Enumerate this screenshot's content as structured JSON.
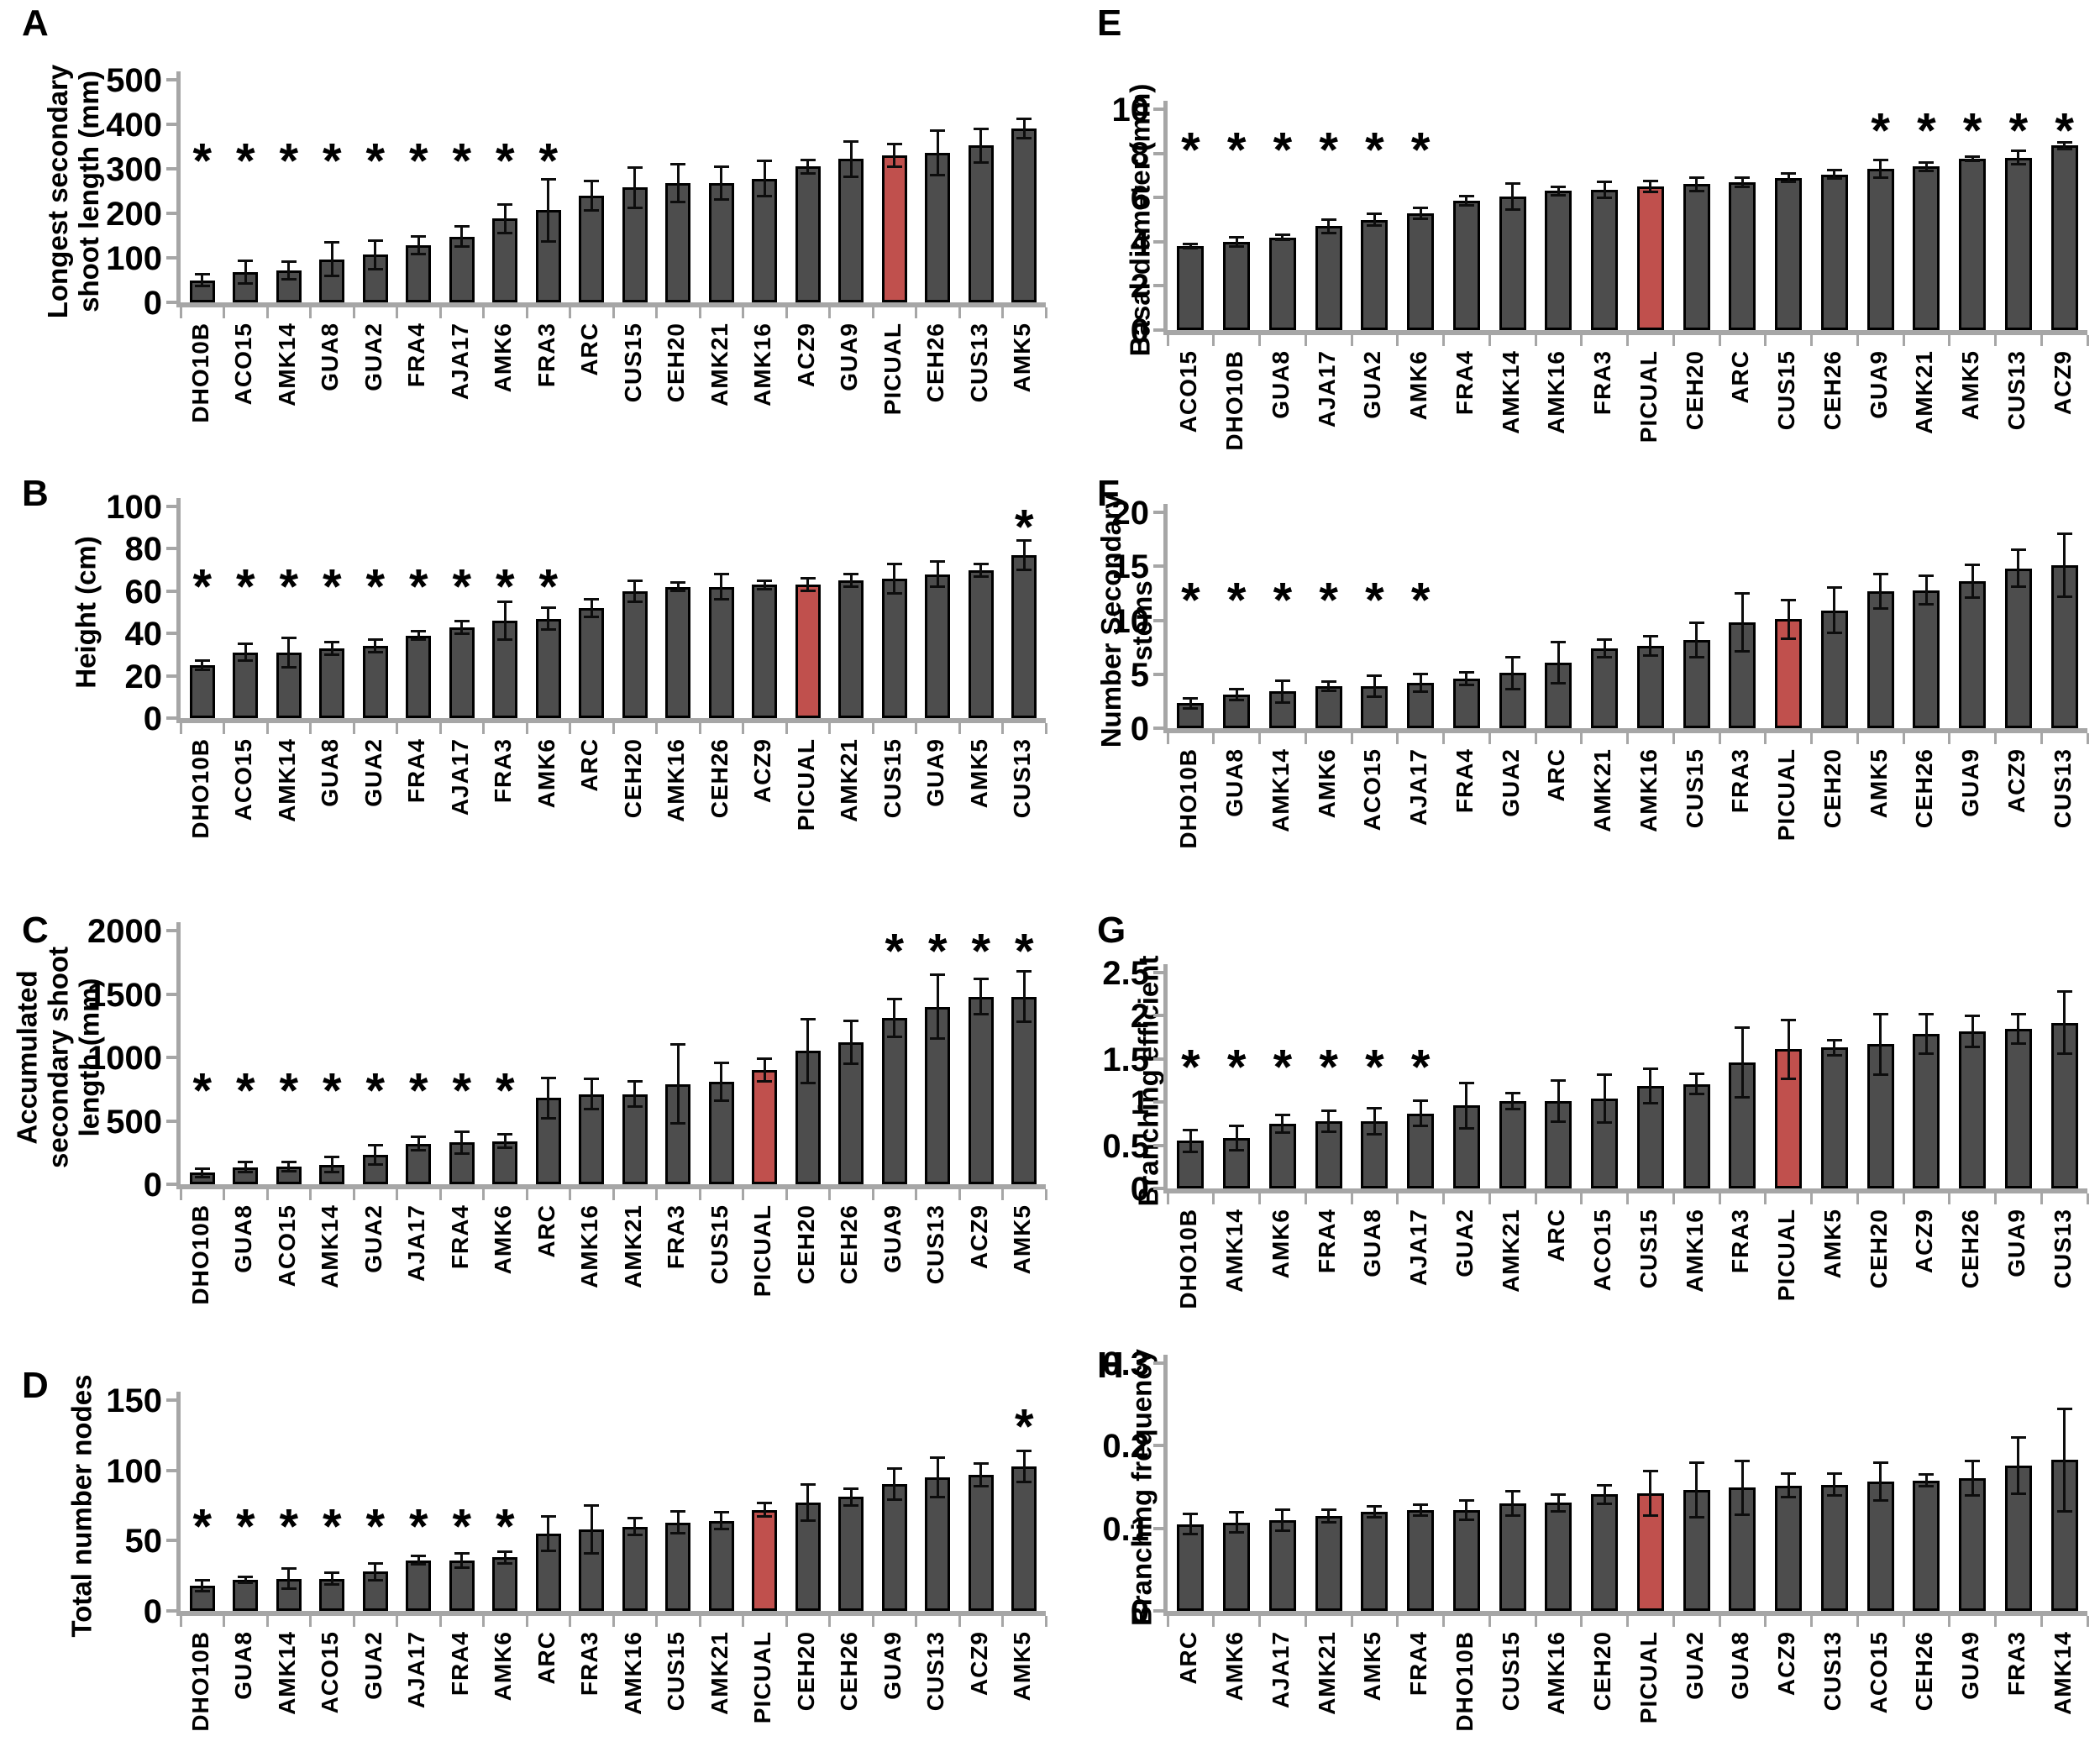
{
  "figure": {
    "description": "Eight bar-chart panels (A-H) comparing olive genotypes against PICUAL reference",
    "highlight_category": "PICUAL",
    "colors": {
      "bar_fill": "#4d4d4d",
      "highlight_fill": "#c0504d",
      "bar_outline": "#000000",
      "axis_gray": "#a6a6a6",
      "error_bar": "#0d0d0d"
    },
    "significance_marker": "*"
  },
  "chart_data": [
    {
      "type": "bar",
      "letter": "A",
      "ylabel": "Longest secondary\nshoot length (mm)",
      "ylim": [
        0,
        500
      ],
      "yticks": [
        "0",
        "100",
        "200",
        "300",
        "400",
        "500"
      ],
      "grid": false,
      "categories": [
        "DHO10B",
        "ACO15",
        "AMK14",
        "GUA8",
        "GUA2",
        "FRA4",
        "AJA17",
        "AMK6",
        "FRA3",
        "ARC",
        "CUS15",
        "CEH20",
        "AMK21",
        "AMK16",
        "ACZ9",
        "GUA9",
        "PICUAL",
        "CEH26",
        "CUS13",
        "AMK5"
      ],
      "values": [
        50,
        68,
        72,
        97,
        107,
        128,
        148,
        188,
        207,
        240,
        258,
        268,
        268,
        278,
        305,
        322,
        330,
        335,
        352,
        390
      ],
      "errors": [
        13,
        25,
        20,
        37,
        32,
        20,
        23,
        32,
        70,
        33,
        45,
        43,
        37,
        40,
        15,
        40,
        25,
        50,
        37,
        22
      ],
      "highlight_category": "PICUAL",
      "asterisks": [
        {
          "indices": [
            0,
            1,
            2,
            3,
            4,
            5,
            6,
            7,
            8
          ],
          "y": 335
        }
      ]
    },
    {
      "type": "bar",
      "letter": "B",
      "ylabel": "Height (cm)",
      "ylim": [
        0,
        100
      ],
      "yticks": [
        "0",
        "20",
        "40",
        "60",
        "80",
        "100"
      ],
      "grid": false,
      "categories": [
        "DHO10B",
        "ACO15",
        "AMK14",
        "GUA8",
        "GUA2",
        "FRA4",
        "AJA17",
        "FRA3",
        "AMK6",
        "ARC",
        "CEH20",
        "AMK16",
        "CEH26",
        "ACZ9",
        "PICUAL",
        "AMK21",
        "CUS15",
        "GUA9",
        "AMK5",
        "CUS13"
      ],
      "values": [
        25,
        31,
        31,
        33,
        34,
        39,
        43,
        46,
        47,
        52,
        60,
        62,
        62,
        63,
        63,
        65,
        66,
        68,
        70,
        77
      ],
      "errors": [
        2,
        4,
        7,
        3,
        3,
        2,
        3,
        9,
        5,
        4,
        5,
        2,
        6,
        2,
        3,
        3,
        7,
        6,
        3,
        7
      ],
      "highlight_category": "PICUAL",
      "asterisks": [
        {
          "indices": [
            0,
            1,
            2,
            3,
            4,
            5,
            6,
            7,
            8
          ],
          "y": 66
        },
        {
          "indices": [
            19
          ],
          "y": 94
        }
      ]
    },
    {
      "type": "bar",
      "letter": "C",
      "ylabel": "Accumulated\nsecondary shoot\nlength (mm)",
      "ylim": [
        0,
        2000
      ],
      "yticks": [
        "0",
        "500",
        "1000",
        "1500",
        "2000"
      ],
      "grid": false,
      "categories": [
        "DHO10B",
        "GUA8",
        "ACO15",
        "AMK14",
        "GUA2",
        "AJA17",
        "FRA4",
        "AMK6",
        "ARC",
        "AMK16",
        "AMK21",
        "FRA3",
        "CUS15",
        "PICUAL",
        "CEH20",
        "CEH26",
        "GUA9",
        "CUS13",
        "ACZ9",
        "AMK5"
      ],
      "values": [
        90,
        135,
        140,
        155,
        230,
        320,
        330,
        340,
        680,
        710,
        710,
        790,
        810,
        900,
        1050,
        1120,
        1310,
        1400,
        1480,
        1480
      ],
      "errors": [
        35,
        40,
        35,
        60,
        75,
        55,
        85,
        55,
        160,
        120,
        100,
        310,
        150,
        90,
        250,
        170,
        150,
        250,
        140,
        200
      ],
      "highlight_category": "PICUAL",
      "asterisks": [
        {
          "indices": [
            0,
            1,
            2,
            3,
            4,
            5,
            6,
            7
          ],
          "y": 800
        },
        {
          "indices": [
            16,
            17,
            18,
            19
          ],
          "y": 1900
        }
      ]
    },
    {
      "type": "bar",
      "letter": "D",
      "ylabel": "Total number nodes",
      "ylim": [
        0,
        150
      ],
      "yticks": [
        "0",
        "50",
        "100",
        "150"
      ],
      "grid": false,
      "categories": [
        "DHO10B",
        "GUA8",
        "AMK14",
        "ACO15",
        "GUA2",
        "AJA17",
        "FRA4",
        "AMK6",
        "ARC",
        "FRA3",
        "AMK16",
        "CUS15",
        "AMK21",
        "PICUAL",
        "CEH20",
        "CEH26",
        "GUA9",
        "CUS13",
        "ACZ9",
        "AMK5"
      ],
      "values": [
        18,
        22,
        23,
        23,
        28,
        36,
        36,
        38,
        55,
        58,
        60,
        63,
        64,
        72,
        77,
        81,
        90,
        95,
        97,
        103
      ],
      "errors": [
        4,
        2,
        7,
        4,
        6,
        3,
        5,
        4,
        12,
        17,
        6,
        8,
        6,
        5,
        13,
        6,
        11,
        14,
        8,
        11
      ],
      "highlight_category": "PICUAL",
      "asterisks": [
        {
          "indices": [
            0,
            1,
            2,
            3,
            4,
            5,
            6,
            7
          ],
          "y": 66
        },
        {
          "indices": [
            19
          ],
          "y": 137
        }
      ]
    },
    {
      "type": "bar",
      "letter": "E",
      "ylabel": "Basal diameter (mm)",
      "ylim": [
        0,
        10
      ],
      "yticks": [
        "0",
        "2",
        "4",
        "6",
        "8",
        "10"
      ],
      "grid": false,
      "categories": [
        "ACO15",
        "DHO10B",
        "GUA8",
        "AJA17",
        "GUA2",
        "AMK6",
        "FRA4",
        "AMK14",
        "AMK16",
        "FRA3",
        "PICUAL",
        "CEH20",
        "ARC",
        "CUS15",
        "CEH26",
        "GUA9",
        "AMK21",
        "AMK5",
        "CUS13",
        "ACZ9"
      ],
      "values": [
        3.8,
        4.0,
        4.2,
        4.7,
        5.0,
        5.3,
        5.85,
        6.05,
        6.3,
        6.35,
        6.5,
        6.6,
        6.7,
        6.9,
        7.05,
        7.3,
        7.4,
        7.75,
        7.8,
        8.35
      ],
      "errors": [
        0.1,
        0.2,
        0.1,
        0.3,
        0.25,
        0.25,
        0.2,
        0.6,
        0.2,
        0.35,
        0.25,
        0.3,
        0.2,
        0.2,
        0.2,
        0.4,
        0.2,
        0.1,
        0.3,
        0.15
      ],
      "highlight_category": "PICUAL",
      "asterisks": [
        {
          "indices": [
            0,
            1,
            2,
            3,
            4,
            5
          ],
          "y": 8.5
        },
        {
          "indices": [
            15,
            16,
            17,
            18,
            19
          ],
          "y": 9.4
        }
      ]
    },
    {
      "type": "bar",
      "letter": "F",
      "ylabel": "Number Secondary\nstems",
      "ylim": [
        0,
        20
      ],
      "yticks": [
        "0",
        "5",
        "10",
        "15",
        "20"
      ],
      "grid": false,
      "categories": [
        "DHO10B",
        "GUA8",
        "AMK14",
        "AMK6",
        "ACO15",
        "AJA17",
        "FRA4",
        "GUA2",
        "ARC",
        "AMK21",
        "AMK16",
        "CUS15",
        "FRA3",
        "PICUAL",
        "CEH20",
        "AMK5",
        "CEH26",
        "GUA9",
        "ACZ9",
        "CUS13"
      ],
      "values": [
        2.3,
        3.1,
        3.4,
        3.9,
        3.9,
        4.2,
        4.6,
        5.1,
        6.1,
        7.4,
        7.6,
        8.2,
        9.8,
        10.1,
        10.9,
        12.7,
        12.8,
        13.6,
        14.8,
        15.1
      ],
      "errors": [
        0.5,
        0.5,
        1.0,
        0.4,
        1.0,
        0.8,
        0.6,
        1.5,
        1.9,
        0.8,
        0.9,
        1.6,
        2.7,
        1.8,
        2.1,
        1.6,
        1.3,
        1.5,
        1.7,
        2.9
      ],
      "highlight_category": "PICUAL",
      "asterisks": [
        {
          "indices": [
            0,
            1,
            2,
            3,
            4,
            5
          ],
          "y": 12.6
        }
      ]
    },
    {
      "type": "bar",
      "letter": "G",
      "ylabel": "Branching efficient",
      "ylim": [
        0,
        2.5
      ],
      "yticks": [
        "0",
        "0.5",
        "1",
        "1.5",
        "2",
        "2.5"
      ],
      "grid": false,
      "categories": [
        "DHO10B",
        "AMK14",
        "AMK6",
        "FRA4",
        "GUA8",
        "AJA17",
        "GUA2",
        "AMK21",
        "ARC",
        "ACO15",
        "CUS15",
        "AMK16",
        "FRA3",
        "PICUAL",
        "AMK5",
        "CEH20",
        "ACZ9",
        "CEH26",
        "GUA9",
        "CUS13"
      ],
      "values": [
        0.55,
        0.58,
        0.75,
        0.78,
        0.78,
        0.87,
        0.96,
        1.01,
        1.01,
        1.04,
        1.19,
        1.21,
        1.46,
        1.61,
        1.63,
        1.67,
        1.79,
        1.82,
        1.85,
        1.92
      ],
      "errors": [
        0.13,
        0.14,
        0.1,
        0.12,
        0.15,
        0.15,
        0.26,
        0.09,
        0.24,
        0.28,
        0.2,
        0.12,
        0.4,
        0.34,
        0.09,
        0.35,
        0.23,
        0.18,
        0.17,
        0.36
      ],
      "highlight_category": "PICUAL",
      "asterisks": [
        {
          "indices": [
            0,
            1,
            2,
            3,
            4,
            5
          ],
          "y": 1.5
        }
      ]
    },
    {
      "type": "bar",
      "letter": "H",
      "ylabel": "Branching frequency",
      "ylim": [
        0,
        0.3
      ],
      "yticks": [
        "0",
        "0.1",
        "0.2",
        "0.3"
      ],
      "grid": false,
      "categories": [
        "ARC",
        "AMK6",
        "AJA17",
        "AMK21",
        "AMK5",
        "FRA4",
        "DHO10B",
        "CUS15",
        "AMK16",
        "CEH20",
        "PICUAL",
        "GUA2",
        "GUA8",
        "ACZ9",
        "CUS13",
        "ACO15",
        "CEH26",
        "GUA9",
        "FRA3",
        "AMK14"
      ],
      "values": [
        0.105,
        0.107,
        0.11,
        0.115,
        0.12,
        0.122,
        0.122,
        0.13,
        0.131,
        0.141,
        0.142,
        0.146,
        0.149,
        0.152,
        0.153,
        0.157,
        0.158,
        0.161,
        0.176,
        0.183
      ],
      "errors": [
        0.012,
        0.012,
        0.013,
        0.008,
        0.007,
        0.007,
        0.012,
        0.015,
        0.01,
        0.011,
        0.027,
        0.033,
        0.033,
        0.014,
        0.013,
        0.023,
        0.007,
        0.021,
        0.034,
        0.062
      ],
      "highlight_category": "PICUAL",
      "asterisks": []
    }
  ]
}
